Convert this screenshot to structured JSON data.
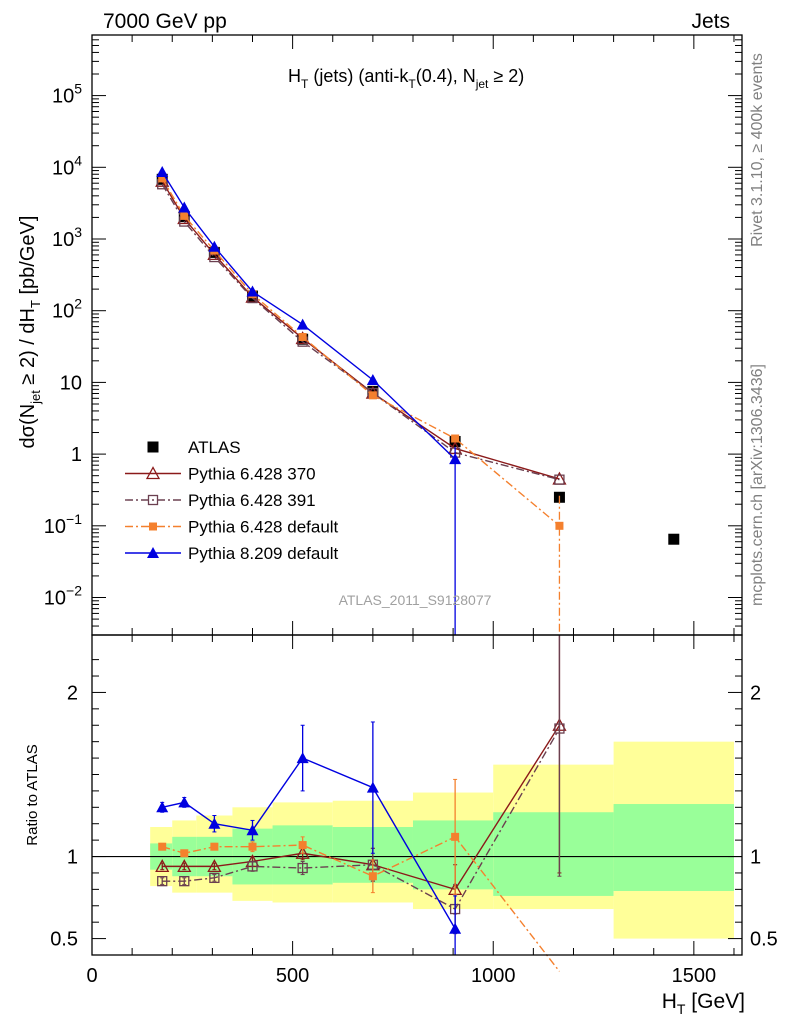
{
  "header": {
    "left": "7000 GeV pp",
    "right": "Jets"
  },
  "side_labels": {
    "rivet": "Rivet 3.1.10, ≥ 400k events",
    "mcplots": "mcplots.cern.ch [arXiv:1306.3436]"
  },
  "plot_title": {
    "main": "H",
    "sub1": "T",
    "mid": " (jets) (anti-k",
    "sub2": "T",
    "mid2": "(0.4), N",
    "sub3": "jet",
    "end": " ≥ 2)"
  },
  "analysis_id": "ATLAS_2011_S9128077",
  "ylabel_main": {
    "a": "dσ(N",
    "s1": "jet",
    "b": " ≥ 2) / dH",
    "s2": "T",
    "c": " [pb/GeV]"
  },
  "ylabel_ratio": "Ratio to ATLAS",
  "xlabel": {
    "a": "H",
    "s": "T",
    "b": " [GeV]"
  },
  "colors": {
    "atlas": "#000000",
    "p370": "#8b1a1a",
    "p391": "#6b4050",
    "p6def": "#f4802e",
    "p8def": "#0000e0",
    "band_inner": "#99ff99",
    "band_outer": "#ffff99"
  },
  "chart_data": {
    "type": "line",
    "title": "H_T (jets) (anti-k_T(0.4), N_jet >= 2)",
    "xlabel": "H_T [GeV]",
    "ylabel": "dσ(N_jet >= 2) / dH_T [pb/GeV]",
    "xlim": [
      0,
      1620
    ],
    "ylim_log": [
      0.003,
      700000
    ],
    "ratio_ylim": [
      0.4,
      2.35
    ],
    "x_ticks": [
      0,
      500,
      1000,
      1500
    ],
    "x_tick_labels": [
      "0",
      "500",
      "1000",
      "1500"
    ],
    "y_ticks_main": [
      {
        "v": 0.01,
        "b": "10",
        "e": "−2"
      },
      {
        "v": 0.1,
        "b": "10",
        "e": "−1"
      },
      {
        "v": 1,
        "b": "1",
        "e": ""
      },
      {
        "v": 10,
        "b": "10",
        "e": ""
      },
      {
        "v": 100,
        "b": "10",
        "e": "2"
      },
      {
        "v": 1000,
        "b": "10",
        "e": "3"
      },
      {
        "v": 10000,
        "b": "10",
        "e": "4"
      },
      {
        "v": 100000,
        "b": "10",
        "e": "5"
      }
    ],
    "y_ticks_ratio": [
      {
        "v": 0.5,
        "label": "0.5"
      },
      {
        "v": 1,
        "label": "1"
      },
      {
        "v": 2,
        "label": "2"
      }
    ],
    "bins": [
      [
        145,
        200
      ],
      [
        200,
        260
      ],
      [
        260,
        350
      ],
      [
        350,
        450
      ],
      [
        450,
        600
      ],
      [
        600,
        800
      ],
      [
        800,
        1000
      ],
      [
        1000,
        1300
      ],
      [
        1300,
        1600
      ]
    ],
    "band_inner": [
      [
        0.92,
        1.08
      ],
      [
        0.88,
        1.12
      ],
      [
        0.88,
        1.12
      ],
      [
        0.83,
        1.17
      ],
      [
        0.83,
        1.19
      ],
      [
        0.84,
        1.18
      ],
      [
        0.8,
        1.22
      ],
      [
        0.76,
        1.27
      ],
      [
        0.79,
        1.32
      ]
    ],
    "band_outer": [
      [
        0.82,
        1.18
      ],
      [
        0.78,
        1.22
      ],
      [
        0.78,
        1.25
      ],
      [
        0.73,
        1.3
      ],
      [
        0.72,
        1.33
      ],
      [
        0.72,
        1.34
      ],
      [
        0.68,
        1.39
      ],
      [
        0.68,
        1.56
      ],
      [
        0.5,
        1.7
      ]
    ],
    "series": [
      {
        "name": "ATLAS",
        "color": "#000000",
        "marker": "square_filled",
        "line": "none",
        "x": [
          175,
          230,
          305,
          400,
          525,
          700,
          905,
          1165,
          1450
        ],
        "y": [
          6800,
          2050,
          650,
          160,
          40,
          7.5,
          1.5,
          0.25,
          0.065
        ]
      },
      {
        "name": "Pythia 6.428 370",
        "color": "#8b1a1a",
        "marker": "triangle_open",
        "line": "solid",
        "x": [
          175,
          230,
          305,
          400,
          525,
          700,
          905,
          1165
        ],
        "y": [
          6400,
          1930,
          610,
          155,
          41,
          7.1,
          1.2,
          0.45
        ],
        "ratio": [
          0.94,
          0.94,
          0.94,
          0.97,
          1.02,
          0.95,
          0.8,
          1.8
        ],
        "ratio_err": [
          0.02,
          0.02,
          0.02,
          0.03,
          0.04,
          0.1,
          0.15,
          0.9
        ]
      },
      {
        "name": "Pythia 6.428 391",
        "color": "#6b4050",
        "marker": "square_open",
        "line": "dashdot",
        "x": [
          175,
          230,
          305,
          400,
          525,
          700,
          905,
          1165
        ],
        "y": [
          5800,
          1750,
          560,
          150,
          37,
          7.1,
          1.05,
          0.44
        ],
        "ratio": [
          0.85,
          0.85,
          0.87,
          0.94,
          0.93,
          0.95,
          0.68,
          1.78
        ],
        "ratio_err": [
          0.02,
          0.02,
          0.02,
          0.03,
          0.04,
          0.1,
          0.15,
          0.9
        ]
      },
      {
        "name": "Pythia 6.428 default",
        "color": "#f4802e",
        "marker": "square_filled_small",
        "line": "dashdot",
        "x": [
          175,
          230,
          305,
          400,
          525,
          700,
          905,
          1165
        ],
        "y": [
          7000,
          2100,
          690,
          170,
          43,
          6.6,
          1.65,
          0.1
        ],
        "ratio": [
          1.06,
          1.02,
          1.06,
          1.06,
          1.07,
          0.88,
          1.12,
          0.3
        ],
        "ratio_err": [
          0.02,
          0.02,
          0.02,
          0.03,
          0.05,
          0.1,
          0.35,
          0.1
        ]
      },
      {
        "name": "Pythia 8.209 default",
        "color": "#0000e0",
        "marker": "triangle_filled",
        "line": "solid",
        "x": [
          175,
          230,
          305,
          400,
          525,
          700,
          905
        ],
        "y": [
          8600,
          2750,
          780,
          185,
          64,
          10.8,
          0.85
        ],
        "ratio": [
          1.3,
          1.33,
          1.2,
          1.16,
          1.6,
          1.42,
          0.56
        ],
        "ratio_err": [
          0.03,
          0.03,
          0.05,
          0.06,
          0.2,
          0.4,
          0.2
        ]
      }
    ]
  }
}
